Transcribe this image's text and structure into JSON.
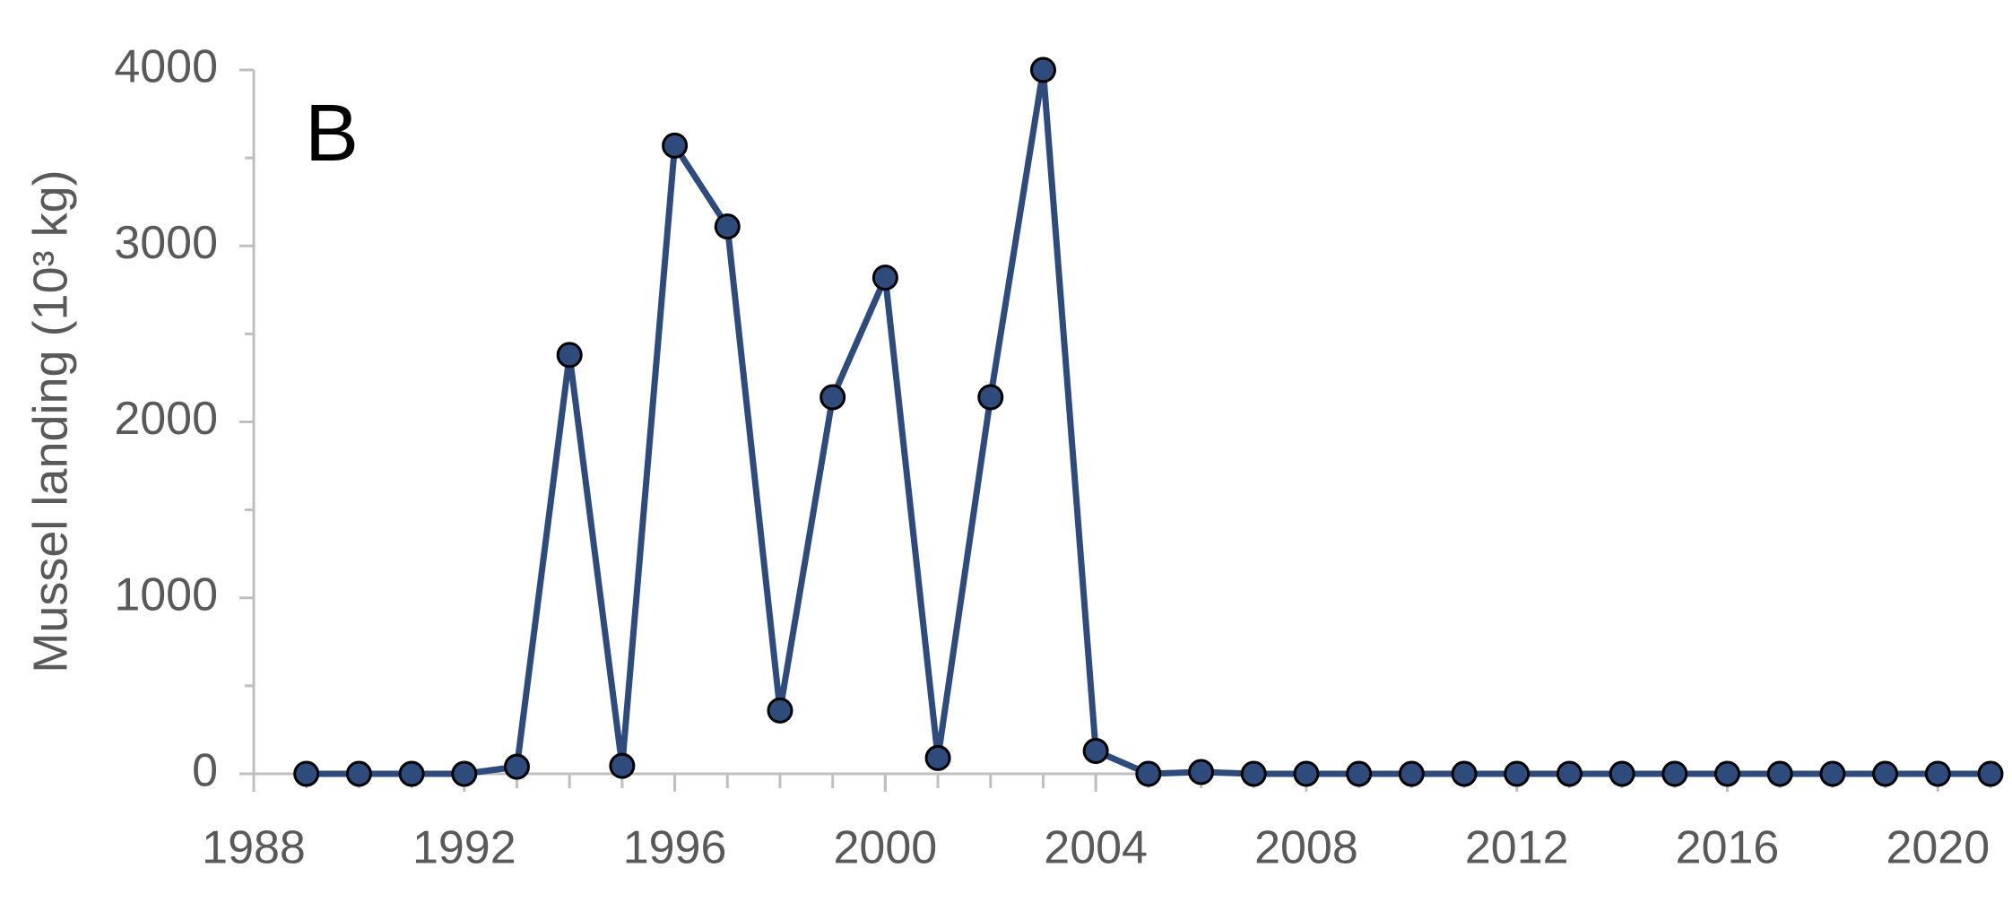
{
  "chart_data": {
    "type": "line",
    "y_label": "Mussel landing (10³ kg)",
    "annotation": "B",
    "x": [
      1989,
      1990,
      1991,
      1992,
      1993,
      1994,
      1995,
      1996,
      1997,
      1998,
      1999,
      2000,
      2001,
      2002,
      2003,
      2004,
      2005,
      2006,
      2007,
      2008,
      2009,
      2010,
      2011,
      2012,
      2013,
      2014,
      2015,
      2016,
      2017,
      2018,
      2019,
      2020,
      2021
    ],
    "series": [
      {
        "color": "#2f4b7c",
        "values": [
          0,
          0,
          0,
          0,
          40,
          2380,
          45,
          3570,
          3110,
          360,
          2140,
          2820,
          90,
          2140,
          4000,
          130,
          0,
          10,
          0,
          0,
          0,
          0,
          0,
          0,
          0,
          0,
          0,
          0,
          0,
          0,
          0,
          0,
          0
        ]
      }
    ],
    "xlim": [
      1988,
      2021
    ],
    "xticks": [
      1988,
      1992,
      1996,
      2000,
      2004,
      2008,
      2012,
      2016,
      2020
    ],
    "ylim": [
      0,
      4000
    ],
    "yticks": [
      0,
      1000,
      2000,
      3000,
      4000
    ],
    "grid": false
  }
}
